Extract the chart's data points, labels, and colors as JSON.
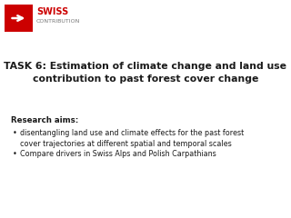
{
  "background_color": "#ffffff",
  "title_line1": "TASK 6: Estimation of climate change and land use",
  "title_line2": "contribution to past forest cover change",
  "title_fontsize": 7.8,
  "title_color": "#1a1a1a",
  "logo_swiss_text": "SWISS",
  "logo_contrib_text": "CONTRIBUTION",
  "logo_swiss_color": "#cc0000",
  "logo_contrib_color": "#777777",
  "logo_box_color": "#cc0000",
  "research_header": "Research aims:",
  "bullet1_line1": "disentangling land use and climate effects for the past forest",
  "bullet1_line2": "cover trajectories at different spatial and temporal scales",
  "bullet2": "Compare drivers in Swiss Alps and Polish Carpathians",
  "text_fontsize": 5.8,
  "header_fontsize": 6.2,
  "text_color": "#1a1a1a"
}
